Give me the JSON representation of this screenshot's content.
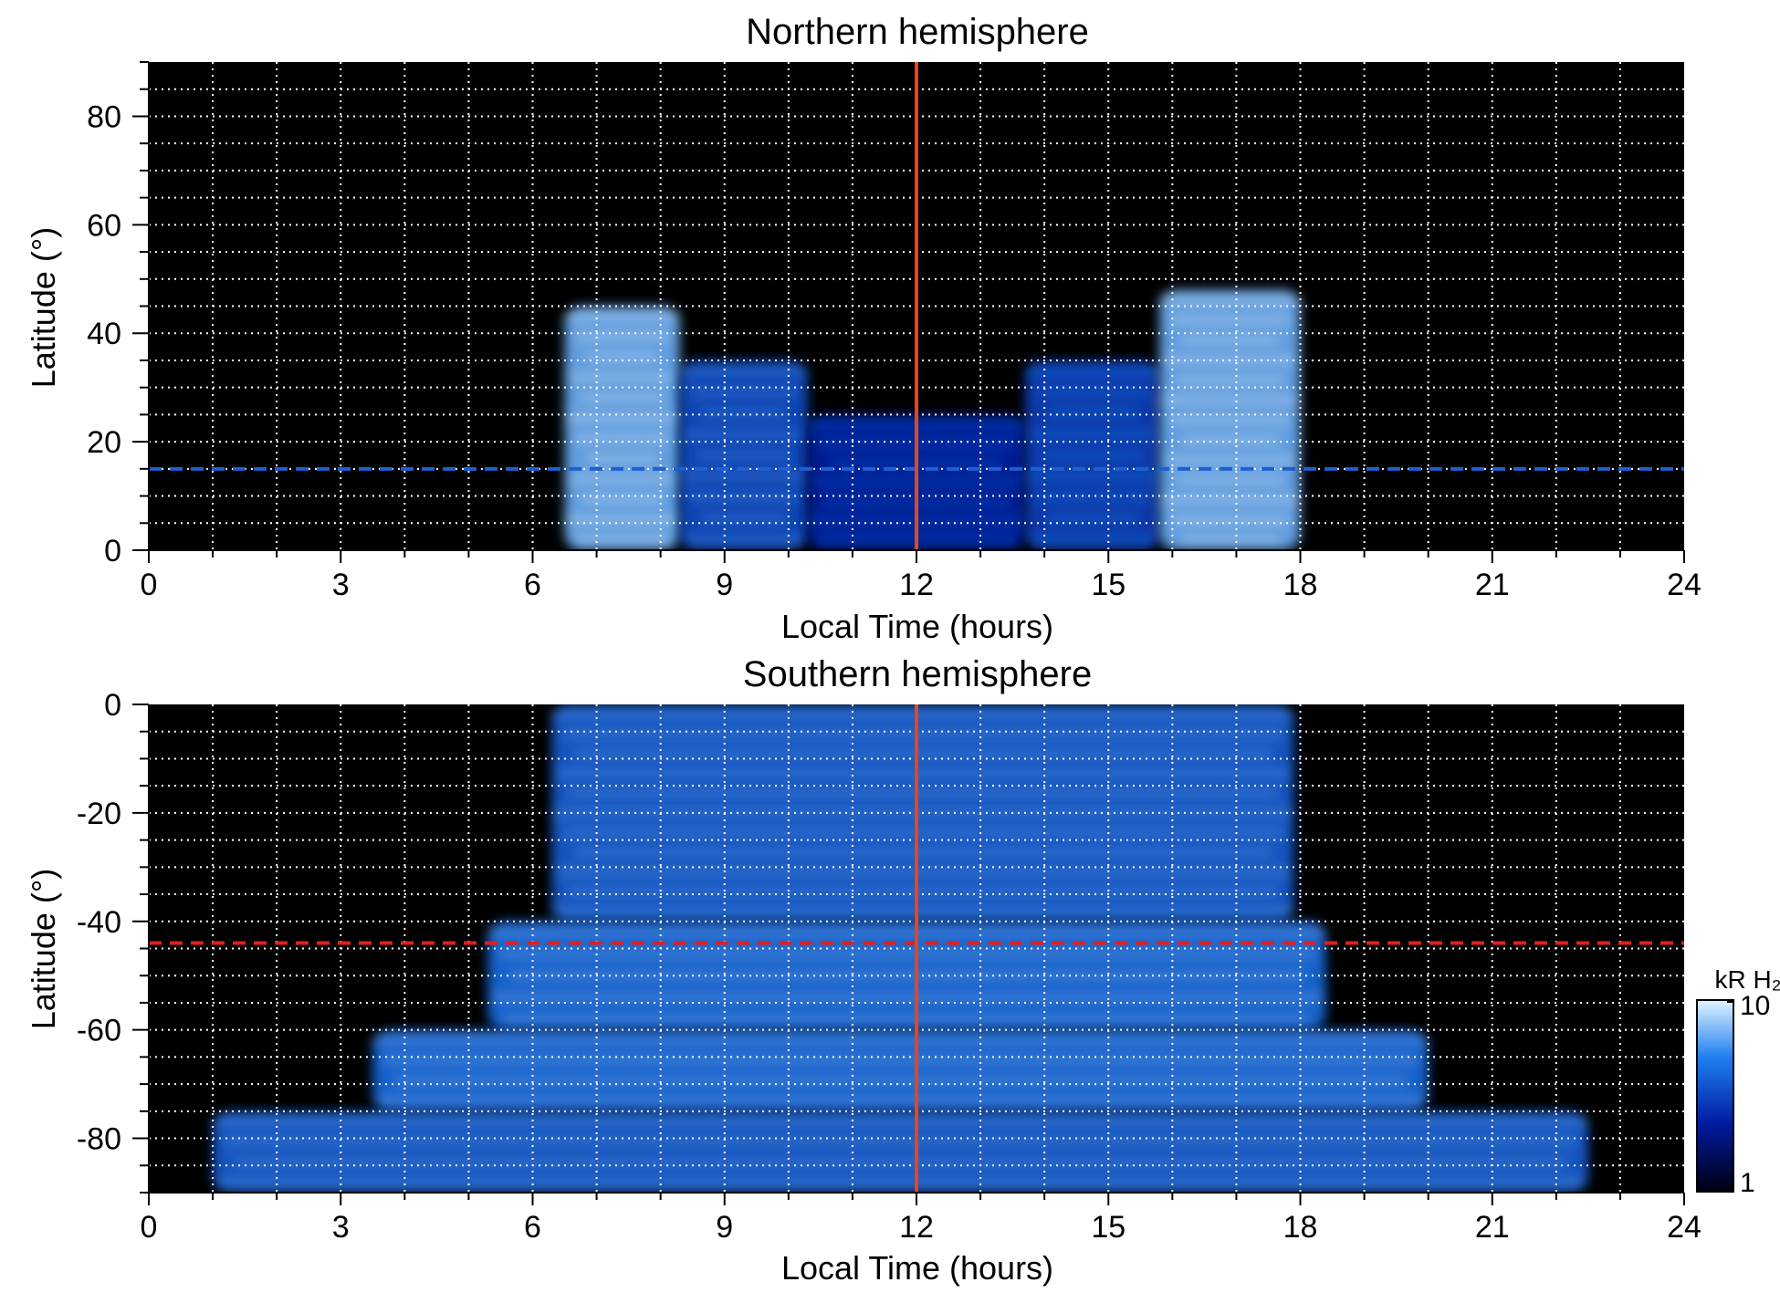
{
  "chart_data": [
    {
      "type": "heatmap",
      "title": "Northern hemisphere",
      "xlabel": "Local Time (hours)",
      "ylabel": "Latitude (°)",
      "xlim": [
        0,
        24
      ],
      "ylim": [
        0,
        90
      ],
      "x_ticks": [
        "0",
        "3",
        "6",
        "9",
        "12",
        "15",
        "18",
        "21",
        "24"
      ],
      "y_ticks": [
        "0",
        "20",
        "40",
        "60",
        "80"
      ],
      "grid": true,
      "noon_line_x": 12,
      "reference_line": {
        "y": 15,
        "color": "#1f5fd0",
        "style": "dashed"
      },
      "emission_bands": [
        {
          "x": [
            6.5,
            8.3
          ],
          "y": [
            0,
            45
          ],
          "intensity": 0.8
        },
        {
          "x": [
            8.3,
            10.3
          ],
          "y": [
            0,
            35
          ],
          "intensity": 0.5
        },
        {
          "x": [
            10.3,
            13.7
          ],
          "y": [
            0,
            25
          ],
          "intensity": 0.35
        },
        {
          "x": [
            13.7,
            15.8
          ],
          "y": [
            0,
            35
          ],
          "intensity": 0.45
        },
        {
          "x": [
            15.8,
            18.0
          ],
          "y": [
            0,
            48
          ],
          "intensity": 0.8
        }
      ]
    },
    {
      "type": "heatmap",
      "title": "Southern hemisphere",
      "xlabel": "Local Time (hours)",
      "ylabel": "Latitude (°)",
      "xlim": [
        0,
        24
      ],
      "ylim": [
        -90,
        0
      ],
      "x_ticks": [
        "0",
        "3",
        "6",
        "9",
        "12",
        "15",
        "18",
        "21",
        "24"
      ],
      "y_ticks": [
        "0",
        "-20",
        "-40",
        "-60",
        "-80"
      ],
      "grid": true,
      "noon_line_x": 12,
      "reference_line": {
        "y": -44,
        "color": "#e02020",
        "style": "dashed"
      },
      "emission_bands": [
        {
          "x": [
            6.3,
            17.9
          ],
          "y": [
            -40,
            0
          ],
          "intensity": 0.55
        },
        {
          "x": [
            5.3,
            18.4
          ],
          "y": [
            -60,
            -40
          ],
          "intensity": 0.6
        },
        {
          "x": [
            3.5,
            20.0
          ],
          "y": [
            -75,
            -60
          ],
          "intensity": 0.6
        },
        {
          "x": [
            1.0,
            22.5
          ],
          "y": [
            -90,
            -75
          ],
          "intensity": 0.55
        }
      ]
    }
  ],
  "colorbar": {
    "label": "kR H₂",
    "min_label": "1",
    "max_label": "10",
    "scale": "log",
    "range": [
      1,
      10
    ],
    "colors": [
      "#000010",
      "#001a9e",
      "#1f7ff0",
      "#e0f4ff"
    ]
  },
  "colors": {
    "background": "#000000",
    "grid": "#ffffff",
    "noon_line": "#e8451a"
  }
}
